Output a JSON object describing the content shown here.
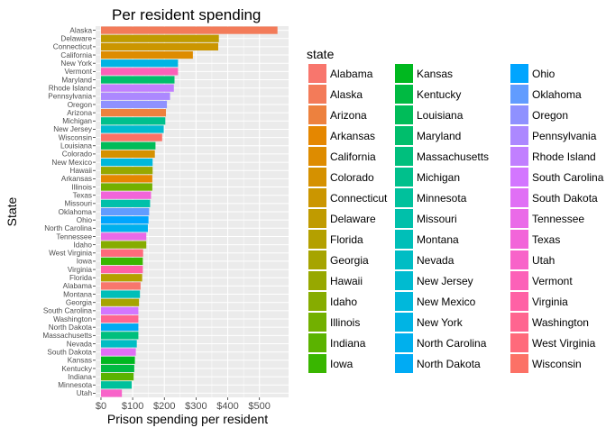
{
  "chart_data": {
    "type": "bar",
    "orientation": "horizontal",
    "title": "Per resident spending",
    "xlabel": "Prison spending per resident",
    "ylabel": "State",
    "xlim": [
      -17,
      592
    ],
    "x_ticks": [
      0,
      100,
      200,
      300,
      400,
      500
    ],
    "x_tick_labels": [
      "$0",
      "$100",
      "$200",
      "$300",
      "$400",
      "$500"
    ],
    "grid": true,
    "background": "#ebebeb",
    "legend": {
      "title": "state",
      "position": "right",
      "columns": 3
    },
    "categories": [
      "Alaska",
      "Delaware",
      "Connecticut",
      "California",
      "New York",
      "Vermont",
      "Maryland",
      "Rhode Island",
      "Pennsylvania",
      "Oregon",
      "Arizona",
      "Michigan",
      "New Jersey",
      "Wisconsin",
      "Louisiana",
      "Colorado",
      "New Mexico",
      "Hawaii",
      "Arkansas",
      "Illinois",
      "Texas",
      "Missouri",
      "Oklahoma",
      "Ohio",
      "North Carolina",
      "Tennessee",
      "Idaho",
      "West Virginia",
      "Iowa",
      "Virginia",
      "Florida",
      "Alabama",
      "Montana",
      "Georgia",
      "South Carolina",
      "Washington",
      "North Dakota",
      "Massachusetts",
      "Nevada",
      "South Dakota",
      "Kansas",
      "Kentucky",
      "Indiana",
      "Minnesota",
      "Utah"
    ],
    "values": [
      557,
      372,
      370,
      290,
      243,
      243,
      232,
      230,
      218,
      208,
      205,
      203,
      198,
      193,
      172,
      170,
      163,
      163,
      162,
      162,
      158,
      155,
      152,
      150,
      148,
      143,
      143,
      133,
      132,
      132,
      130,
      125,
      123,
      120,
      118,
      118,
      118,
      118,
      113,
      110,
      107,
      105,
      103,
      97,
      66
    ],
    "legend_states": [
      "Alabama",
      "Alaska",
      "Arizona",
      "Arkansas",
      "California",
      "Colorado",
      "Connecticut",
      "Delaware",
      "Florida",
      "Georgia",
      "Hawaii",
      "Idaho",
      "Illinois",
      "Indiana",
      "Iowa",
      "Kansas",
      "Kentucky",
      "Louisiana",
      "Maryland",
      "Massachusetts",
      "Michigan",
      "Minnesota",
      "Missouri",
      "Montana",
      "Nevada",
      "New Jersey",
      "New Mexico",
      "New York",
      "North Carolina",
      "North Dakota",
      "Ohio",
      "Oklahoma",
      "Oregon",
      "Pennsylvania",
      "Rhode Island",
      "South Carolina",
      "South Dakota",
      "Tennessee",
      "Texas",
      "Utah",
      "Vermont",
      "Virginia",
      "Washington",
      "West Virginia",
      "Wisconsin"
    ],
    "colors": [
      "#F8766D",
      "#F37B59",
      "#ED813E",
      "#E58700",
      "#DE8C00",
      "#D59100",
      "#CB9600",
      "#C09B00",
      "#B4A000",
      "#A6A400",
      "#97A800",
      "#86AC00",
      "#72B000",
      "#5BB300",
      "#39B600",
      "#00B81F",
      "#00BA42",
      "#00BC59",
      "#00BE6C",
      "#00BF7D",
      "#00C08C",
      "#00C19C",
      "#00C0AA",
      "#00BFB8",
      "#00BDC4",
      "#00BBD0",
      "#00B8DB",
      "#00B4E4",
      "#00B0ED",
      "#00ABF4",
      "#00A5FF",
      "#619CFF",
      "#8F91FF",
      "#AC88FF",
      "#C17FFF",
      "#D376FF",
      "#E06FF5",
      "#EA6AE8",
      "#F265D9",
      "#F863C9",
      "#FC61B8",
      "#FF61A5",
      "#FF6590",
      "#FF6A7B",
      "#FC7166"
    ]
  }
}
